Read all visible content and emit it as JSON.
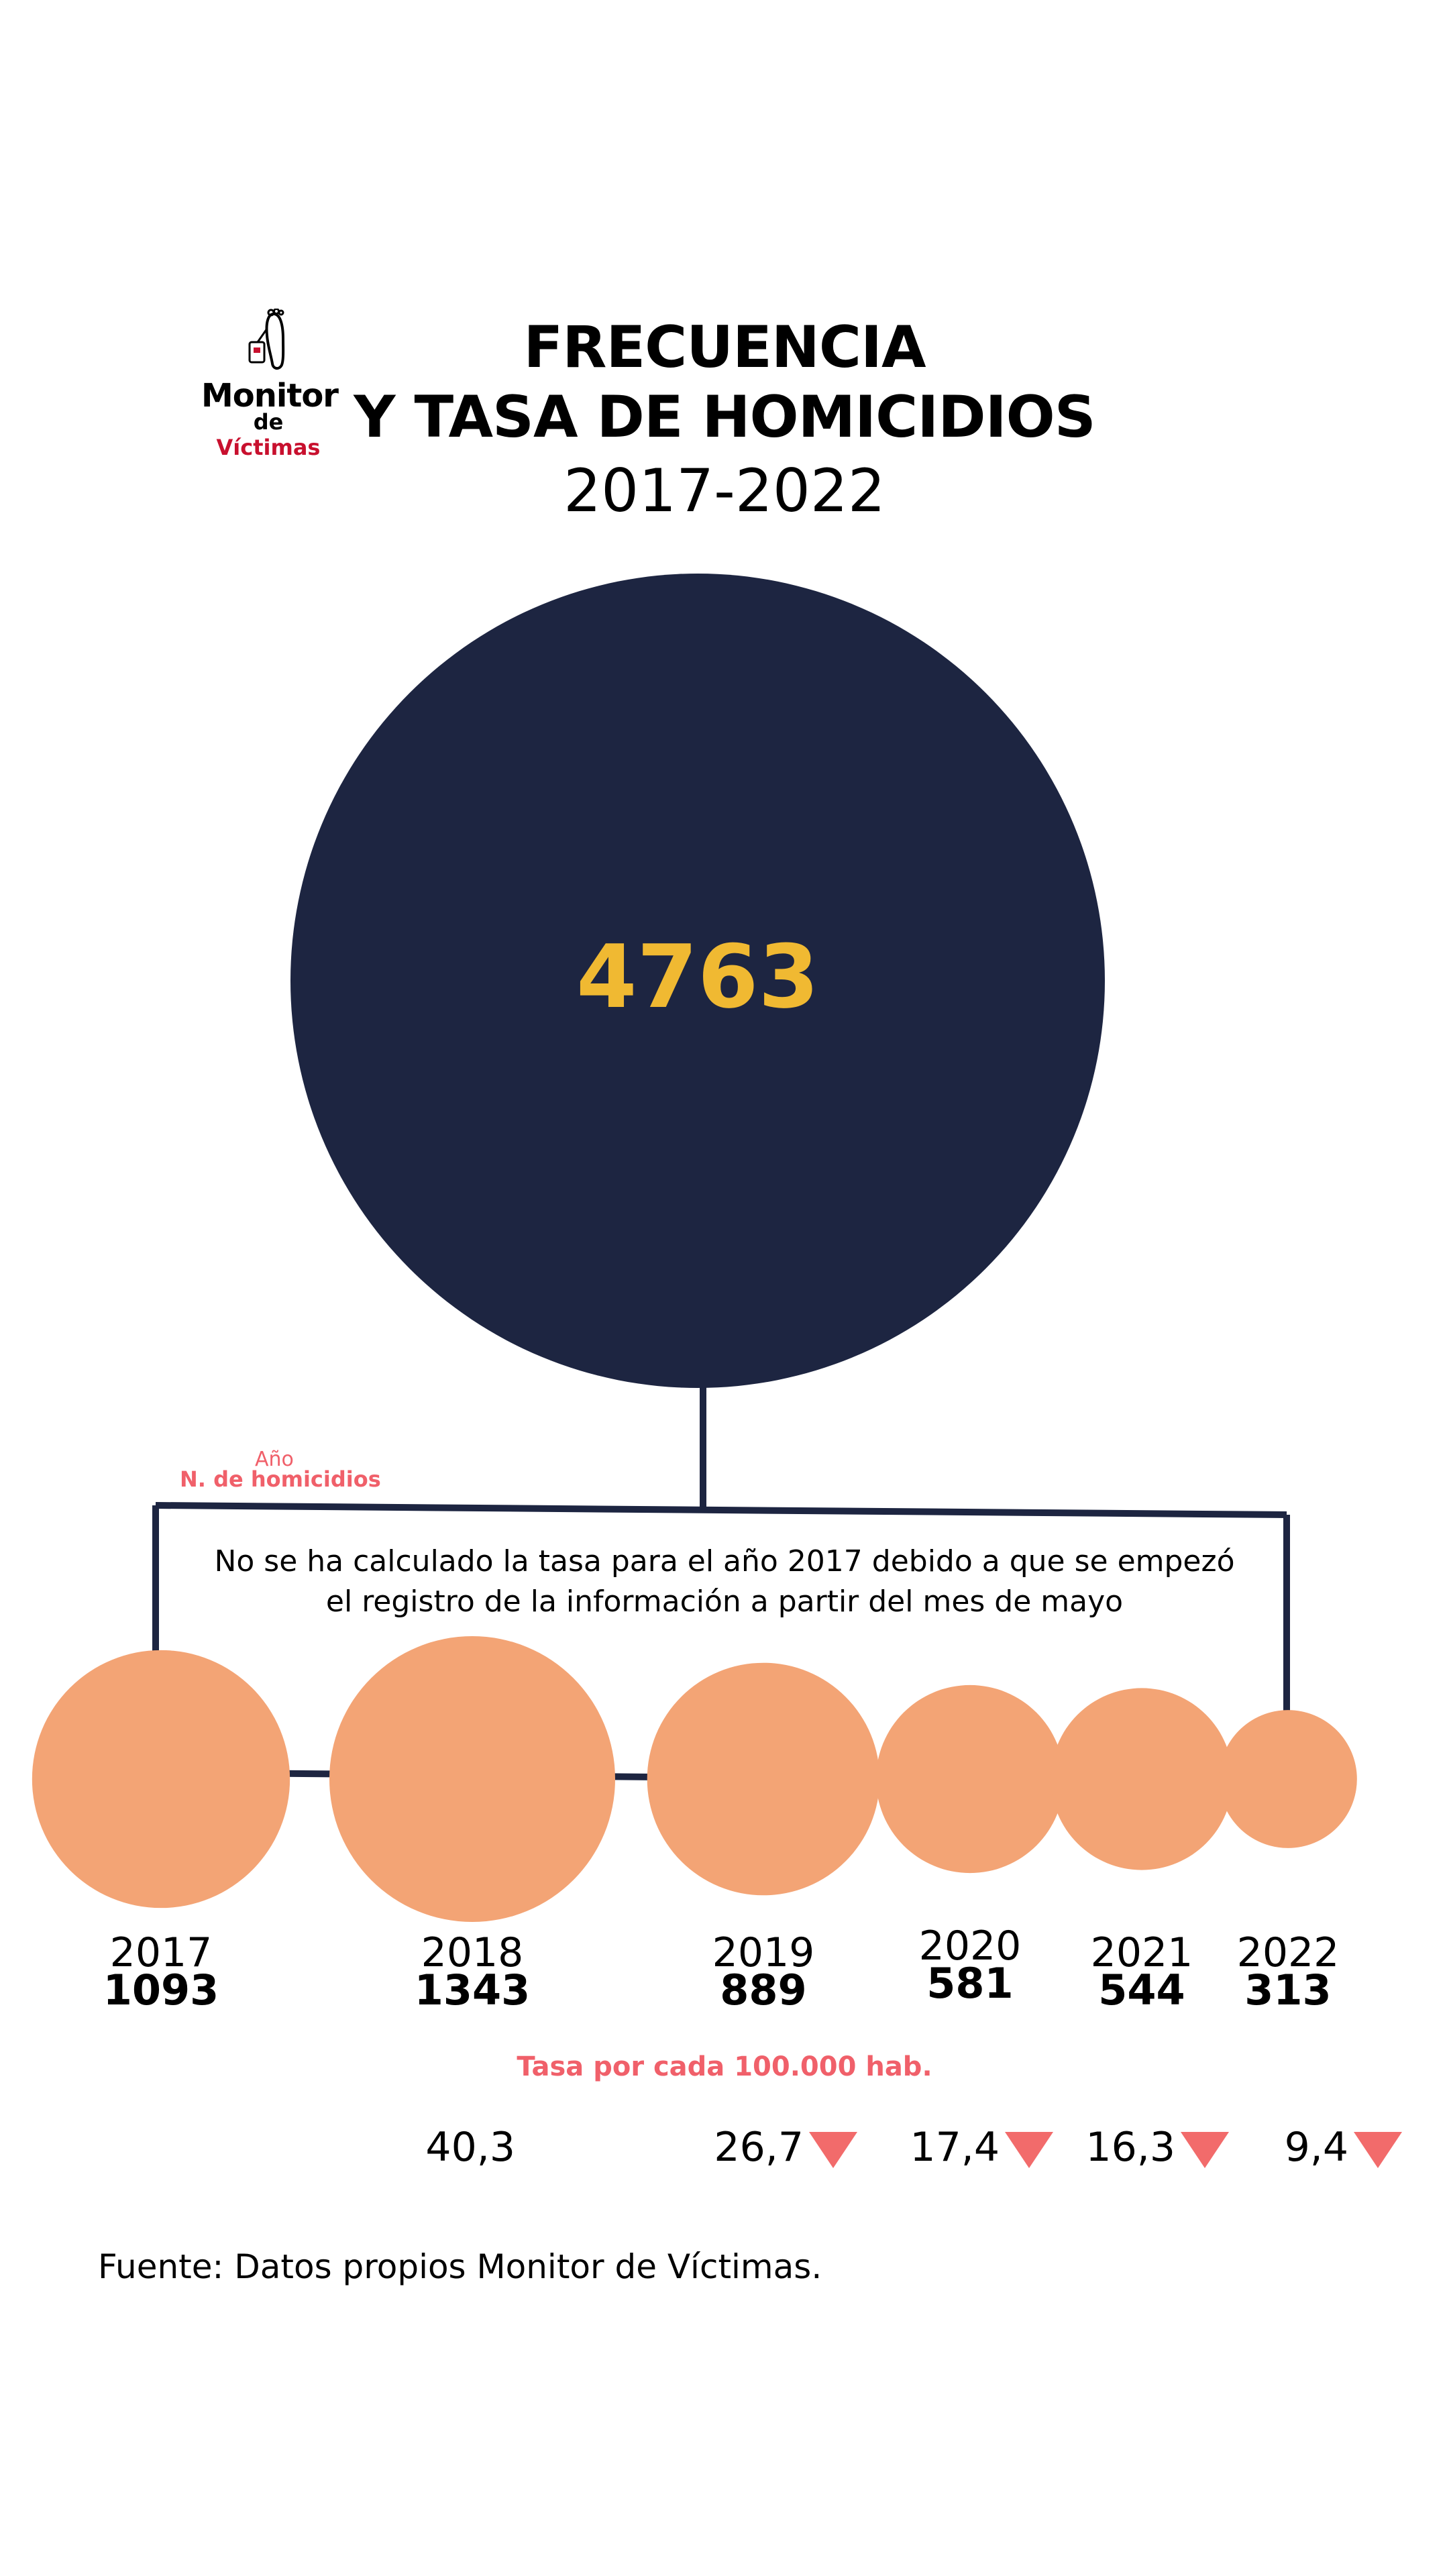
{
  "logo": {
    "line1": "Monitor",
    "line2_a": "de ",
    "line2_b": "Víctimas"
  },
  "title": {
    "line1": "FRECUENCIA",
    "line2": "Y TASA DE HOMICIDIOS",
    "line3": "2017-2022"
  },
  "total": "4763",
  "legend": {
    "year_label": "Año",
    "count_label": "N. de homicidios"
  },
  "note": {
    "line1": "No se ha calculado la tasa para el año 2017 debido a que se empezó",
    "line2": "el registro de la información a partir del mes de  mayo"
  },
  "rate_title": "Tasa por cada 100.000 hab.",
  "source": "Fuente: Datos propios Monitor de Víctimas.",
  "colors": {
    "navy": "#1d2541",
    "salmon": "#f3a475",
    "gold": "#f0b932",
    "pink": "#f0606a",
    "down_arrow": "#f26b6b"
  },
  "chart_data": {
    "type": "bubble",
    "total": 4763,
    "categories": [
      "2017",
      "2018",
      "2019",
      "2020",
      "2021",
      "2022"
    ],
    "count_labels": [
      "1093",
      "1343",
      "889",
      "581",
      "544",
      "313"
    ],
    "counts": [
      1093,
      1343,
      889,
      581,
      544,
      313
    ],
    "rate_labels": [
      "",
      "40,3",
      "26,7",
      "17,4",
      "16,3",
      "9,4"
    ],
    "rates": [
      null,
      40.3,
      26.7,
      17.4,
      16.3,
      9.4
    ],
    "rate_trend": [
      "",
      "",
      "down",
      "down",
      "down",
      "down"
    ]
  }
}
